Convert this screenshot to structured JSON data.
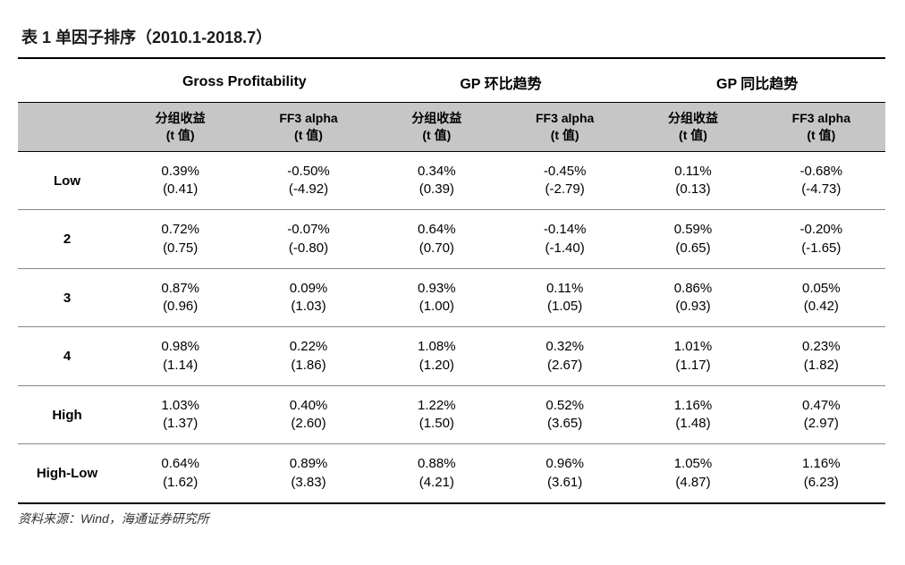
{
  "title": "表 1 单因子排序（2010.1-2018.7）",
  "source": "资料来源：Wind，海通证券研究所",
  "header": {
    "groups": [
      "Gross Profitability",
      "GP 环比趋势",
      "GP 同比趋势"
    ],
    "sub": {
      "a": "分组收益",
      "a2": "(t 值)",
      "b": "FF3 alpha",
      "b2": "(t 值)"
    }
  },
  "rows": [
    {
      "label": "Low",
      "cells": [
        {
          "v": "0.39%",
          "t": "(0.41)"
        },
        {
          "v": "-0.50%",
          "t": "(-4.92)"
        },
        {
          "v": "0.34%",
          "t": "(0.39)"
        },
        {
          "v": "-0.45%",
          "t": "(-2.79)"
        },
        {
          "v": "0.11%",
          "t": "(0.13)"
        },
        {
          "v": "-0.68%",
          "t": "(-4.73)"
        }
      ]
    },
    {
      "label": "2",
      "cells": [
        {
          "v": "0.72%",
          "t": "(0.75)"
        },
        {
          "v": "-0.07%",
          "t": "(-0.80)"
        },
        {
          "v": "0.64%",
          "t": "(0.70)"
        },
        {
          "v": "-0.14%",
          "t": "(-1.40)"
        },
        {
          "v": "0.59%",
          "t": "(0.65)"
        },
        {
          "v": "-0.20%",
          "t": "(-1.65)"
        }
      ]
    },
    {
      "label": "3",
      "cells": [
        {
          "v": "0.87%",
          "t": "(0.96)"
        },
        {
          "v": "0.09%",
          "t": "(1.03)"
        },
        {
          "v": "0.93%",
          "t": "(1.00)"
        },
        {
          "v": "0.11%",
          "t": "(1.05)"
        },
        {
          "v": "0.86%",
          "t": "(0.93)"
        },
        {
          "v": "0.05%",
          "t": "(0.42)"
        }
      ]
    },
    {
      "label": "4",
      "cells": [
        {
          "v": "0.98%",
          "t": "(1.14)"
        },
        {
          "v": "0.22%",
          "t": "(1.86)"
        },
        {
          "v": "1.08%",
          "t": "(1.20)"
        },
        {
          "v": "0.32%",
          "t": "(2.67)"
        },
        {
          "v": "1.01%",
          "t": "(1.17)"
        },
        {
          "v": "0.23%",
          "t": "(1.82)"
        }
      ]
    },
    {
      "label": "High",
      "cells": [
        {
          "v": "1.03%",
          "t": "(1.37)"
        },
        {
          "v": "0.40%",
          "t": "(2.60)"
        },
        {
          "v": "1.22%",
          "t": "(1.50)"
        },
        {
          "v": "0.52%",
          "t": "(3.65)"
        },
        {
          "v": "1.16%",
          "t": "(1.48)"
        },
        {
          "v": "0.47%",
          "t": "(2.97)"
        }
      ]
    },
    {
      "label": "High-Low",
      "cells": [
        {
          "v": "0.64%",
          "t": "(1.62)"
        },
        {
          "v": "0.89%",
          "t": "(3.83)"
        },
        {
          "v": "0.88%",
          "t": "(4.21)"
        },
        {
          "v": "0.96%",
          "t": "(3.61)"
        },
        {
          "v": "1.05%",
          "t": "(4.87)"
        },
        {
          "v": "1.16%",
          "t": "(6.23)"
        }
      ]
    }
  ],
  "style": {
    "header_bg": "#c6c6c6",
    "border_color": "#000000",
    "row_sep_color": "#888888",
    "text_color": "#000000",
    "font_family": "Microsoft YaHei / Arial",
    "title_fontsize_pt": 14,
    "cell_fontsize_pt": 11
  }
}
